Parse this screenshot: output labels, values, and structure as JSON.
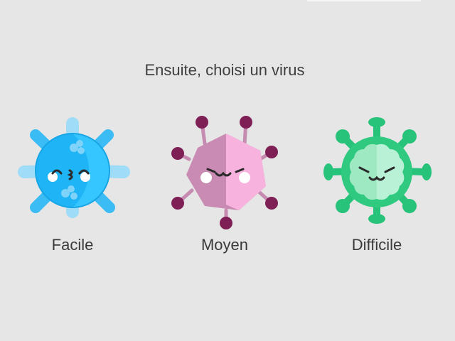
{
  "prompt": "Ensuite, choisi un virus",
  "options": [
    {
      "label": "Facile",
      "icon": "blue-virus-icon",
      "color": "#2fb3f5"
    },
    {
      "label": "Moyen",
      "icon": "pink-virus-icon",
      "color": "#f0a5d6"
    },
    {
      "label": "Difficile",
      "icon": "green-virus-icon",
      "color": "#2fca7f"
    }
  ]
}
